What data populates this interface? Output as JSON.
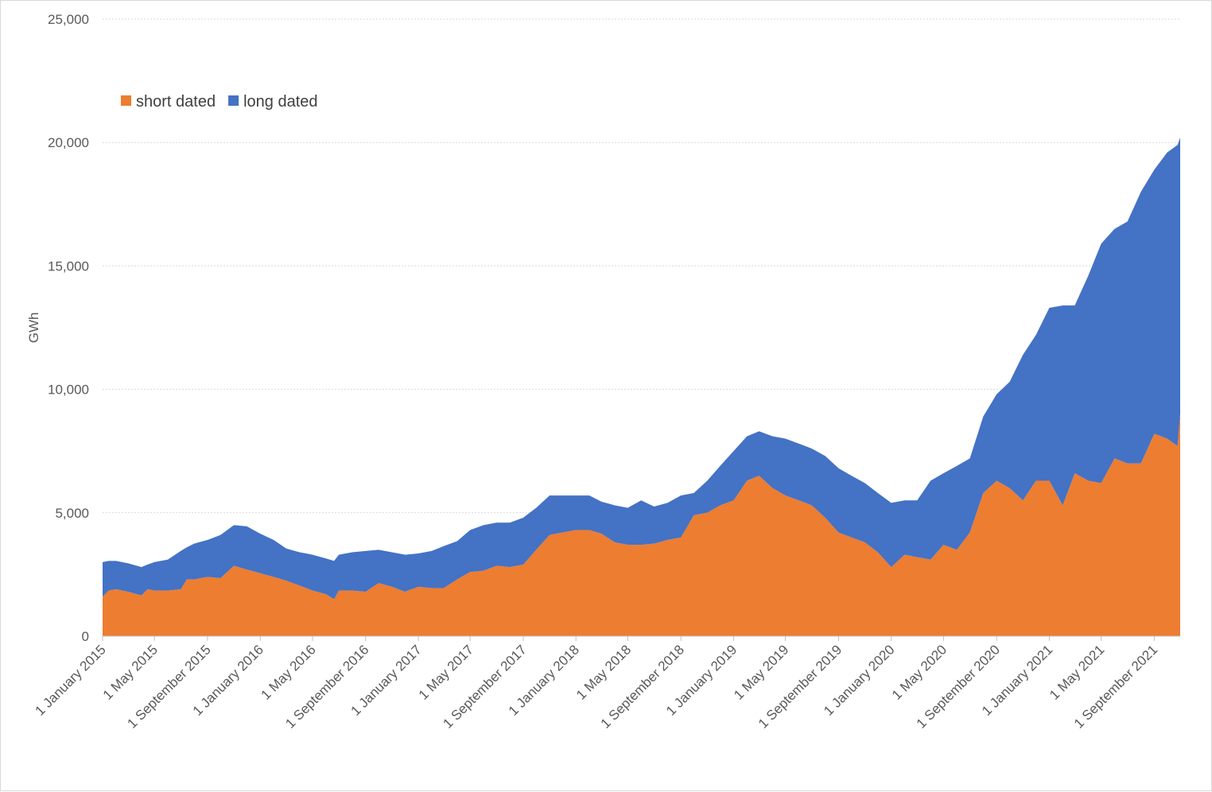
{
  "chart_data": {
    "type": "area",
    "stacked": true,
    "title": "",
    "xlabel": "",
    "ylabel": "GWh",
    "ylim": [
      0,
      25000
    ],
    "yticks": [
      0,
      5000,
      10000,
      15000,
      20000,
      25000
    ],
    "ytick_labels": [
      "0",
      "5,000",
      "10,000",
      "15,000",
      "20,000",
      "25,000"
    ],
    "xlim": [
      "2015-01-01",
      "2021-10-31"
    ],
    "xtick_labels": [
      "1 January 2015",
      "1 May 2015",
      "1 September 2015",
      "1 January 2016",
      "1 May 2016",
      "1 September 2016",
      "1 January 2017",
      "1 May 2017",
      "1 September 2017",
      "1 January 2018",
      "1 May 2018",
      "1 September 2018",
      "1 January 2019",
      "1 May 2019",
      "1 September 2019",
      "1 January 2020",
      "1 May 2020",
      "1 September 2020",
      "1 January 2021",
      "1 May 2021",
      "1 September 2021"
    ],
    "xtick_dates": [
      "2015-01-01",
      "2015-05-01",
      "2015-09-01",
      "2016-01-01",
      "2016-05-01",
      "2016-09-01",
      "2017-01-01",
      "2017-05-01",
      "2017-09-01",
      "2018-01-01",
      "2018-05-01",
      "2018-09-01",
      "2019-01-01",
      "2019-05-01",
      "2019-09-01",
      "2020-01-01",
      "2020-05-01",
      "2020-09-01",
      "2021-01-01",
      "2021-05-01",
      "2021-09-01"
    ],
    "grid": "horizontal dotted",
    "legend_position": "top-left",
    "x": [
      "2015-01-01",
      "2015-01-15",
      "2015-02-01",
      "2015-03-01",
      "2015-04-01",
      "2015-04-15",
      "2015-05-01",
      "2015-06-01",
      "2015-07-01",
      "2015-07-15",
      "2015-08-01",
      "2015-09-01",
      "2015-10-01",
      "2015-11-01",
      "2015-12-01",
      "2016-01-01",
      "2016-02-01",
      "2016-03-01",
      "2016-04-01",
      "2016-05-01",
      "2016-06-01",
      "2016-06-20",
      "2016-07-01",
      "2016-08-01",
      "2016-09-01",
      "2016-10-01",
      "2016-11-01",
      "2016-12-01",
      "2017-01-01",
      "2017-02-01",
      "2017-03-01",
      "2017-04-01",
      "2017-05-01",
      "2017-06-01",
      "2017-07-01",
      "2017-08-01",
      "2017-09-01",
      "2017-10-01",
      "2017-11-01",
      "2017-12-01",
      "2018-01-01",
      "2018-02-01",
      "2018-03-01",
      "2018-04-01",
      "2018-05-01",
      "2018-06-01",
      "2018-07-01",
      "2018-08-01",
      "2018-09-01",
      "2018-10-01",
      "2018-11-01",
      "2018-12-01",
      "2019-01-01",
      "2019-02-01",
      "2019-03-01",
      "2019-04-01",
      "2019-05-01",
      "2019-06-01",
      "2019-07-01",
      "2019-08-01",
      "2019-09-01",
      "2019-10-01",
      "2019-11-01",
      "2019-12-01",
      "2020-01-01",
      "2020-02-01",
      "2020-03-01",
      "2020-04-01",
      "2020-05-01",
      "2020-06-01",
      "2020-07-01",
      "2020-08-01",
      "2020-09-01",
      "2020-10-01",
      "2020-11-01",
      "2020-12-01",
      "2021-01-01",
      "2021-02-01",
      "2021-03-01",
      "2021-04-01",
      "2021-05-01",
      "2021-06-01",
      "2021-07-01",
      "2021-08-01",
      "2021-09-01",
      "2021-10-01",
      "2021-10-25",
      "2021-10-31"
    ],
    "series": [
      {
        "name": "short dated",
        "color": "#ED7D31",
        "values": [
          1600,
          1850,
          1900,
          1800,
          1650,
          1900,
          1850,
          1850,
          1900,
          2300,
          2300,
          2400,
          2350,
          2850,
          2700,
          2550,
          2400,
          2250,
          2050,
          1850,
          1700,
          1500,
          1850,
          1850,
          1800,
          2150,
          2000,
          1800,
          2000,
          1950,
          1950,
          2300,
          2600,
          2650,
          2850,
          2800,
          2900,
          3500,
          4100,
          4200,
          4300,
          4300,
          4150,
          3800,
          3700,
          3700,
          3750,
          3900,
          4000,
          4900,
          5000,
          5300,
          5500,
          6300,
          6500,
          6000,
          5700,
          5500,
          5300,
          4800,
          4200,
          4000,
          3800,
          3400,
          2800,
          3300,
          3200,
          3100,
          3700,
          3500,
          4200,
          5800,
          6300,
          6000,
          5500,
          6300,
          6300,
          5300,
          6600,
          6300,
          6200,
          7200,
          7000,
          7000,
          8200,
          8000,
          7700,
          9000
        ]
      },
      {
        "name": "long dated",
        "color": "#4472C4",
        "values": [
          1400,
          1200,
          1150,
          1150,
          1150,
          1000,
          1150,
          1250,
          1550,
          1300,
          1450,
          1500,
          1750,
          1650,
          1750,
          1600,
          1500,
          1300,
          1350,
          1450,
          1450,
          1550,
          1450,
          1550,
          1650,
          1350,
          1400,
          1500,
          1350,
          1500,
          1700,
          1550,
          1700,
          1850,
          1750,
          1800,
          1900,
          1700,
          1600,
          1500,
          1400,
          1400,
          1300,
          1500,
          1500,
          1800,
          1500,
          1500,
          1700,
          900,
          1300,
          1600,
          2000,
          1800,
          1800,
          2100,
          2300,
          2300,
          2300,
          2500,
          2600,
          2500,
          2400,
          2400,
          2600,
          2200,
          2300,
          3200,
          2900,
          3400,
          3000,
          3100,
          3500,
          4300,
          5900,
          5900,
          7000,
          8100,
          6800,
          8300,
          9700,
          9300,
          9800,
          11000,
          10700,
          11600,
          12200,
          11200
        ]
      }
    ]
  }
}
